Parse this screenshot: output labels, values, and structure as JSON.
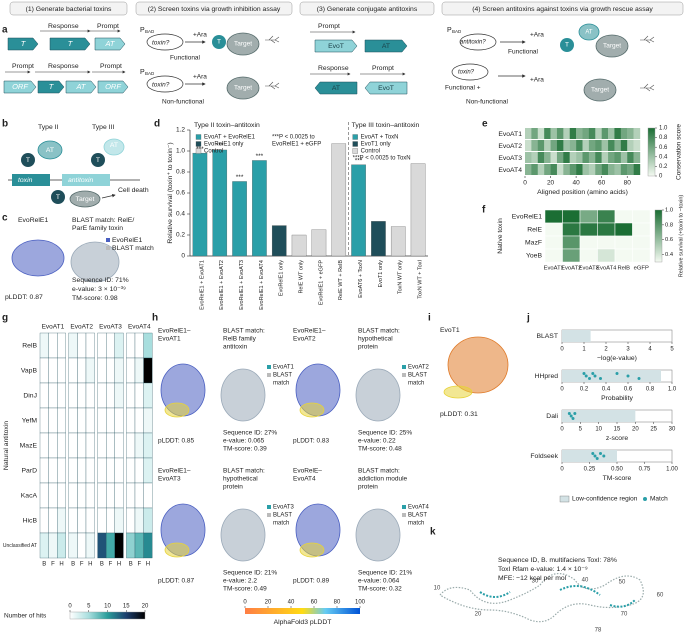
{
  "letters": [
    "a",
    "b",
    "c",
    "d",
    "e",
    "f",
    "g",
    "h",
    "i",
    "j",
    "k"
  ],
  "a": {
    "steps": [
      "(1) Generate bacterial toxins",
      "(2) Screen toxins via growth inhibition assay",
      "(3) Generate conjugate antitoxins",
      "(4) Screen antitoxins against toxins via growth rescue assay"
    ],
    "step1": [
      "Response",
      "Prompt",
      "T",
      "T",
      "AT",
      "Prompt",
      "Response",
      "Prompt",
      "ORF",
      "T",
      "AT",
      "ORF"
    ],
    "step2": [
      "P",
      "BAD",
      "toxin?",
      "+Ara",
      "Functional",
      "T",
      "Target",
      "P",
      "BAD",
      "toxin?",
      "+Ara",
      "Non-functional",
      "Target"
    ],
    "step3": [
      "Prompt",
      "EvoT",
      "AT",
      "Response",
      "Prompt",
      "AT",
      "EvoT"
    ],
    "step4": [
      "P",
      "BAD",
      "antitoxin?",
      "+Ara",
      "Functional",
      "AT",
      "T",
      "Target",
      "toxin?",
      "Functional +",
      "Non-functional",
      "+Ara",
      "Target"
    ]
  },
  "b": {
    "labels": [
      "Type II",
      "Type III",
      "AT",
      "T",
      "AT",
      "T",
      "toxin",
      "antitoxin",
      "T",
      "Target",
      "Cell death"
    ]
  },
  "c": {
    "labels": [
      "EvoRelE1",
      "BLAST match: RelE/",
      "ParE family toxin",
      "EvoRelE1",
      "BLAST match",
      "pLDDT: 0.87",
      "Sequence ID: 71%",
      "e-value: 3 × 10⁻³⁹",
      "TM-score: 0.98"
    ]
  },
  "chart_data": [
    {
      "type": "bar",
      "group_labels": [
        "Type II toxin–antitoxin",
        "Type III toxin–antitoxin"
      ],
      "ylabel": "Relative survival (toxin⁺ to toxin⁻)",
      "categories": [
        "EvoRelE1 + EvoAT1",
        "EvoRelE1 + EvoAT2",
        "EvoRelE1 + EvoAT3",
        "EvoRelE1 + EvoAT4",
        "EvoRelE1 only",
        "RelE WT only",
        "EvoRelE1 + eGFP",
        "RelE WT + RelB",
        "EvoAT6 + ToxN",
        "EvoT1 only",
        "ToxN WT only",
        "ToxN WT + ToxI"
      ],
      "values": [
        0.98,
        1.01,
        0.71,
        0.91,
        0.29,
        0.2,
        0.25,
        1.07,
        0.87,
        0.33,
        0.28,
        0.88
      ],
      "bar_colors": [
        "#2a9fa8",
        "#2a9fa8",
        "#2a9fa8",
        "#2a9fa8",
        "#1f4e5a",
        "#d9d9d9",
        "#d9d9d9",
        "#d9d9d9",
        "#2a9fa8",
        "#1f4e5a",
        "#d9d9d9",
        "#d9d9d9"
      ],
      "significance": [
        "***",
        "***",
        "***",
        "***",
        null,
        null,
        null,
        null,
        "***",
        null,
        null,
        null
      ],
      "legend_left": [
        {
          "name": "EvoAT + EvoRelE1",
          "color": "#2a9fa8"
        },
        {
          "name": "EvoRelE1 only",
          "color": "#1f4e5a"
        },
        {
          "name": "Control",
          "color": "#d9d9d9"
        }
      ],
      "notes_left": [
        "***P < 0.0025 to",
        "EvoRelE1 + eGFP"
      ],
      "legend_right": [
        {
          "name": "EvoAT + ToxN",
          "color": "#2a9fa8"
        },
        {
          "name": "EvoT1 only",
          "color": "#1f4e5a"
        },
        {
          "name": "Control",
          "color": "#d9d9d9"
        }
      ],
      "notes_right": [
        "***P < 0.0025 to ToxN"
      ],
      "ylim": [
        0,
        1.2
      ],
      "yticks": [
        0,
        0.2,
        0.4,
        0.6,
        0.8,
        {
          "value": 1,
          "label": "1.0"
        },
        1.2
      ]
    },
    {
      "type": "heatmap",
      "rows": [
        "EvoAT1",
        "EvoAT2",
        "EvoAT3",
        "EvoAT4"
      ],
      "xlabel": "Aligned position (amino acids)",
      "xlim": [
        0,
        90
      ],
      "xticks": [
        0,
        20,
        40,
        60,
        80
      ],
      "values": [
        [
          0.3,
          0.6,
          0.2,
          0.8,
          0.4,
          0.7,
          0.3,
          0.9,
          0.5,
          0.6,
          0.8,
          0.3,
          0.7,
          0.4,
          0.9,
          0.6,
          0.5,
          0.3
        ],
        [
          0.2,
          0.5,
          0.7,
          0.3,
          0.6,
          0.9,
          0.4,
          0.5,
          0.8,
          0.3,
          0.6,
          0.7,
          0.4,
          0.8,
          0.5,
          0.9,
          0.3,
          0.2
        ],
        [
          0.4,
          0.3,
          0.8,
          0.5,
          0.2,
          0.6,
          0.9,
          0.3,
          0.4,
          0.7,
          0.5,
          0.8,
          0.3,
          0.6,
          0.7,
          0.4,
          0.8,
          0.5
        ],
        [
          0.5,
          0.7,
          0.3,
          0.6,
          0.8,
          0.2,
          0.5,
          0.7,
          0.9,
          0.4,
          0.3,
          0.6,
          0.8,
          0.5,
          0.4,
          0.7,
          0.6,
          0.9
        ]
      ],
      "colorbar": {
        "label": "Conservation score",
        "lim": [
          0,
          1
        ],
        "ticks": [
          0,
          0.2,
          0.4,
          0.6,
          0.8,
          {
            "value": 1,
            "label": "1.0"
          }
        ]
      }
    },
    {
      "type": "heatmap",
      "rows": [
        "EvoRelE1",
        "RelE",
        "MazF",
        "YoeB"
      ],
      "columns": [
        "EvoAT1",
        "EvoAT2",
        "EvoAT3",
        "EvoAT4",
        "RelB",
        "eGFP"
      ],
      "ylabel": "Native toxin",
      "values": [
        [
          1.0,
          1.0,
          0.7,
          0.9,
          0.3,
          0.3
        ],
        [
          0.3,
          0.95,
          0.95,
          0.95,
          1.0,
          0.3
        ],
        [
          0.3,
          0.8,
          0.3,
          0.3,
          0.3,
          0.3
        ],
        [
          0.3,
          0.75,
          0.3,
          0.4,
          0.3,
          0.3
        ]
      ],
      "colorbar": {
        "label": "Relative survival (+toxin to −toxin)",
        "lim": [
          0.3,
          1
        ],
        "ticks": [
          0.4,
          0.6,
          0.8,
          {
            "value": 1,
            "label": "1.0"
          }
        ]
      }
    },
    {
      "type": "heatmap",
      "groups": [
        "EvoAT1",
        "EvoAT2",
        "EvoAT3",
        "EvoAT4"
      ],
      "sublabels": [
        "B",
        "F",
        "H"
      ],
      "ylabel": "Natural antitoxin",
      "rows": [
        "RelB",
        "VapB",
        "DinJ",
        "YefM",
        "MazE",
        "ParD",
        "KacA",
        "HicB",
        "Unclassified AT"
      ],
      "values": [
        [
          1,
          0,
          0,
          1,
          0,
          0,
          0,
          0,
          2,
          0,
          0,
          5
        ],
        [
          0,
          0,
          0,
          0,
          0,
          1,
          0,
          0,
          1,
          0,
          1,
          20
        ],
        [
          0,
          0,
          0,
          0,
          0,
          0,
          0,
          0,
          1,
          0,
          0,
          2
        ],
        [
          0,
          0,
          0,
          0,
          0,
          0,
          0,
          0,
          0,
          0,
          0,
          1
        ],
        [
          0,
          0,
          0,
          0,
          0,
          0,
          0,
          0,
          0,
          0,
          1,
          2
        ],
        [
          0,
          0,
          0,
          0,
          0,
          0,
          0,
          0,
          0,
          0,
          0,
          2
        ],
        [
          0,
          0,
          0,
          0,
          0,
          0,
          0,
          0,
          0,
          0,
          0,
          0
        ],
        [
          0,
          0,
          1,
          0,
          0,
          0,
          0,
          0,
          1,
          0,
          1,
          3
        ],
        [
          2,
          1,
          3,
          1,
          0,
          1,
          14,
          9,
          20,
          6,
          8,
          11
        ]
      ],
      "colorbar": {
        "label": "Number of hits",
        "lim": [
          0,
          20
        ],
        "ticks": [
          0,
          5,
          10,
          15,
          20
        ]
      }
    },
    {
      "type": "strip",
      "region_color": "#d3e2e5",
      "point_color": "#2a9fa8",
      "legend": [
        "Low-confidence region",
        "Match"
      ],
      "panels": [
        {
          "name": "BLAST",
          "xlabel": "−log(e-value)",
          "xlim": [
            0,
            5
          ],
          "xticks": [
            0,
            1,
            2,
            3,
            4,
            5
          ],
          "region": [
            0,
            1.3
          ],
          "values": []
        },
        {
          "name": "HHpred",
          "xlabel": "Probability",
          "xlim": [
            0,
            1
          ],
          "xticks": [
            0,
            0.2,
            0.4,
            0.6,
            0.8,
            {
              "value": 1,
              "label": "1.0"
            }
          ],
          "region": [
            0,
            0.9
          ],
          "values": [
            0.2,
            0.22,
            0.25,
            0.28,
            0.3,
            0.35,
            0.5,
            0.6,
            0.7
          ]
        },
        {
          "name": "Dali",
          "xlabel": "z-score",
          "xlim": [
            0,
            30
          ],
          "xticks": [
            0,
            5,
            10,
            15,
            20,
            25,
            30
          ],
          "region": [
            0,
            20
          ],
          "values": [
            2,
            2.5,
            3,
            3.5
          ]
        },
        {
          "name": "Foldseek",
          "xlabel": "TM-score",
          "xlim": [
            0,
            1
          ],
          "xticks": [
            0,
            {
              "value": 0.25,
              "label": "0.25"
            },
            {
              "value": 0.5,
              "label": "0.50"
            },
            {
              "value": 0.75,
              "label": "0.75"
            },
            {
              "value": 1,
              "label": "1.00"
            }
          ],
          "region": [
            0,
            0.5
          ],
          "values": [
            0.28,
            0.3,
            0.32,
            0.35,
            0.38
          ]
        }
      ]
    }
  ],
  "h": {
    "blocks": [
      {
        "title": [
          "EvoRelE1–",
          "EvoAT1"
        ],
        "match": [
          "BLAST match:",
          "RelB family",
          "antitoxin"
        ],
        "legend": [
          "EvoAT1",
          "BLAST",
          "match"
        ],
        "plddt": "pLDDT: 0.85",
        "stats": [
          "Sequence ID: 27%",
          "e-value: 0.065",
          "TM-score: 0.39"
        ]
      },
      {
        "title": [
          "EvoRelE1–",
          "EvoAT2"
        ],
        "match": [
          "BLAST match:",
          "hypothetical",
          "protein"
        ],
        "legend": [
          "EvoAT2",
          "BLAST",
          "match"
        ],
        "plddt": "pLDDT: 0.83",
        "stats": [
          "Sequence ID: 25%",
          "e-value: 0.22",
          "TM-score: 0.48"
        ]
      },
      {
        "title": [
          "EvoRelE1–",
          "EvoAT3"
        ],
        "match": [
          "BLAST match:",
          "hypothetical",
          "protein"
        ],
        "legend": [
          "EvoAT3",
          "BLAST",
          "match"
        ],
        "plddt": "pLDDT: 0.87",
        "stats": [
          "Sequence ID: 21%",
          "e-value: 2.2",
          "TM-score: 0.49"
        ]
      },
      {
        "title": [
          "EvoRelE–",
          "EvoAT4"
        ],
        "match": [
          "BLAST match:",
          "addiction module",
          "protein"
        ],
        "legend": [
          "EvoAT4",
          "BLAST",
          "match"
        ],
        "plddt": "pLDDT: 0.89",
        "stats": [
          "Sequence ID: 21%",
          "e-value: 0.064",
          "TM-score: 0.32"
        ]
      }
    ],
    "colorbar": {
      "label": "AlphaFold3 pLDDT",
      "lim": [
        0,
        100
      ],
      "ticks": [
        0,
        20,
        40,
        60,
        80,
        100
      ]
    }
  },
  "i": {
    "labels": [
      "EvoT1",
      "pLDDT: 0.31"
    ]
  },
  "k": {
    "lines": [
      "Sequence ID, B. multifaciens ToxI: 78%",
      "ToxI Rfam e-value: 1.4 × 10⁻⁹",
      "MFE: −12 kcal per mol"
    ],
    "positions": [
      10,
      20,
      30,
      40,
      50,
      60,
      70,
      78
    ]
  }
}
